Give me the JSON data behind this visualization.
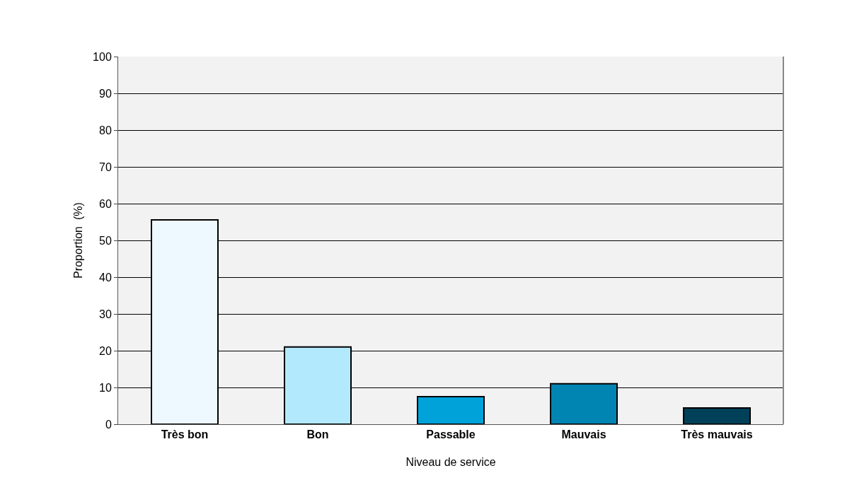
{
  "chart_data": {
    "type": "bar",
    "xlabel": "Niveau de service",
    "ylabel": "Proportion  (%)",
    "categories": [
      "Très bon",
      "Bon",
      "Passable",
      "Mauvais",
      "Très mauvais"
    ],
    "values": [
      55.6,
      21.0,
      7.5,
      11.0,
      4.4
    ],
    "colors": [
      "#eef9ff",
      "#b3e9fd",
      "#00a2da",
      "#0085b3",
      "#004058"
    ],
    "ylim": [
      0,
      100
    ],
    "yticks": [
      0,
      10,
      20,
      30,
      40,
      50,
      60,
      70,
      80,
      90,
      100
    ],
    "grid": "y",
    "legend": false
  }
}
